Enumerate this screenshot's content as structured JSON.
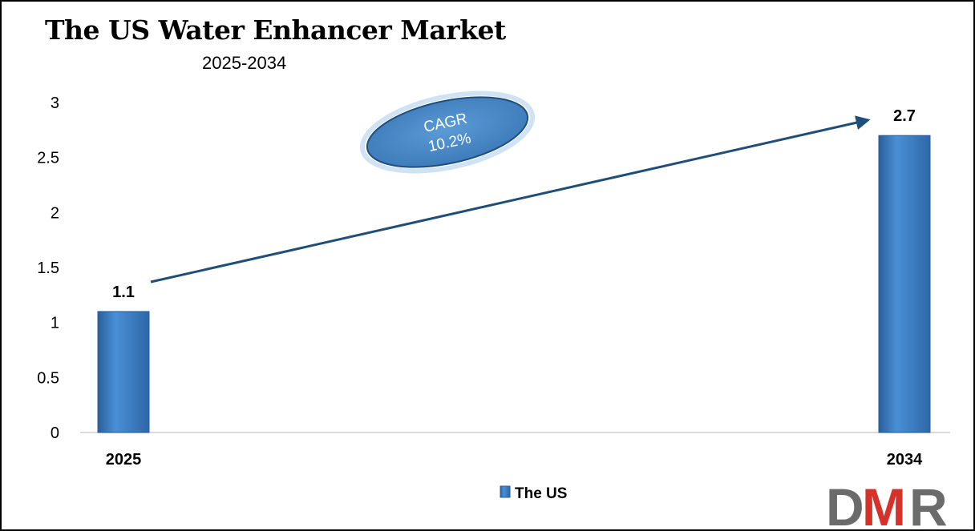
{
  "chart_data": {
    "type": "bar",
    "title": "The US Water Enhancer Market",
    "subtitle": "2025-2034",
    "categories": [
      "2025",
      "2034"
    ],
    "series": [
      {
        "name": "The US",
        "values": [
          1.1,
          2.7
        ],
        "labels": [
          "1.1",
          "2.7"
        ]
      }
    ],
    "ylim": [
      0,
      3
    ],
    "yticks": [
      "0",
      "0.5",
      "1",
      "1.5",
      "2",
      "2.5",
      "3"
    ],
    "ytick_values": [
      0,
      0.5,
      1,
      1.5,
      2,
      2.5,
      3
    ],
    "grid": false,
    "legend": "bottom-center",
    "annotation": {
      "line1": "CAGR",
      "line2": "10.2%"
    }
  },
  "colors": {
    "bar": "#3a7dc4",
    "bar_dark": "#2a5f99",
    "arrow": "#1f4e79",
    "logo_grey": "#6b6b6b",
    "logo_red": "#d6312b"
  },
  "logo": {
    "d": "D",
    "m": "M",
    "r": "R"
  }
}
